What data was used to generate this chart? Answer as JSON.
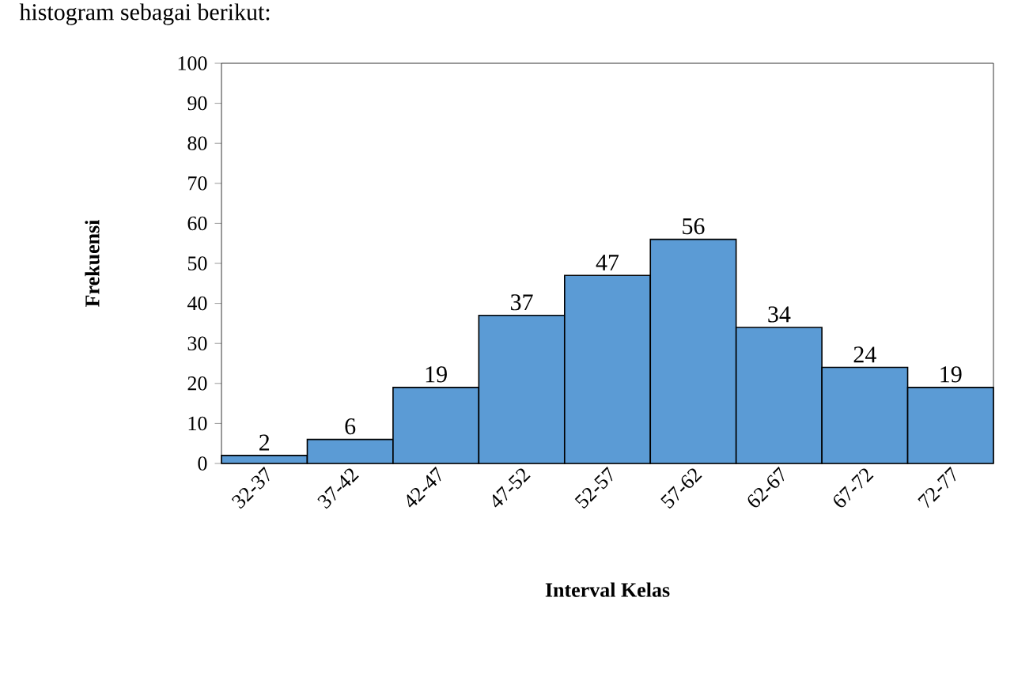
{
  "chart_data": {
    "type": "bar",
    "xlabel": "Interval Kelas",
    "ylabel": "Frekuensi",
    "annotations": [
      "histogram sebagai berikut:"
    ],
    "categories": [
      "32-37",
      "37-42",
      "42-47",
      "47-52",
      "52-57",
      "57-62",
      "62-67",
      "67-72",
      "72-77"
    ],
    "values": [
      2,
      6,
      19,
      37,
      47,
      56,
      34,
      24,
      19
    ],
    "color": "#5b9bd5",
    "data_labels": true,
    "grid": false,
    "ylim": [
      0,
      100
    ],
    "yticks": [
      0,
      10,
      20,
      30,
      40,
      50,
      60,
      70,
      80,
      90,
      100
    ]
  }
}
